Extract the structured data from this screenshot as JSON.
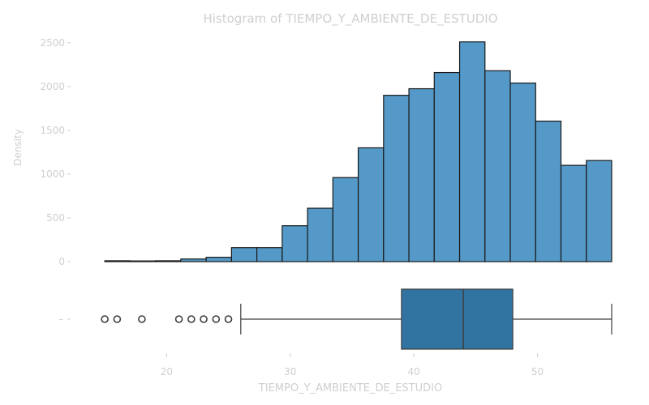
{
  "chart_data": {
    "type": "bar",
    "title": "Histogram of TIEMPO_Y_AMBIENTE_DE_ESTUDIO",
    "xlabel": "TIEMPO_Y_AMBIENTE_DE_ESTUDIO",
    "ylabel": "Density",
    "xlim": [
      12.3,
      56
    ],
    "ylim": [
      0,
      2600
    ],
    "x_ticks": [
      20,
      30,
      40,
      50
    ],
    "y_ticks": [
      0,
      500,
      1000,
      1500,
      2000,
      2500
    ],
    "bin_width": 2.05,
    "bins": [
      {
        "x0": 15.0,
        "count": 10
      },
      {
        "x0": 17.05,
        "count": 8
      },
      {
        "x0": 19.1,
        "count": 10
      },
      {
        "x0": 21.15,
        "count": 30
      },
      {
        "x0": 23.2,
        "count": 50
      },
      {
        "x0": 25.25,
        "count": 160
      },
      {
        "x0": 27.3,
        "count": 160
      },
      {
        "x0": 29.35,
        "count": 410
      },
      {
        "x0": 31.4,
        "count": 610
      },
      {
        "x0": 33.45,
        "count": 960
      },
      {
        "x0": 35.5,
        "count": 1300
      },
      {
        "x0": 37.55,
        "count": 1900
      },
      {
        "x0": 39.6,
        "count": 1975
      },
      {
        "x0": 41.65,
        "count": 2160
      },
      {
        "x0": 43.7,
        "count": 2510
      },
      {
        "x0": 45.75,
        "count": 2180
      },
      {
        "x0": 47.8,
        "count": 2040
      },
      {
        "x0": 49.85,
        "count": 1605
      },
      {
        "x0": 51.9,
        "count": 1100
      },
      {
        "x0": 53.95,
        "count": 1155
      }
    ],
    "boxplot": {
      "whisker_low": 26,
      "q1": 39,
      "median": 44,
      "q3": 48,
      "whisker_high": 56,
      "outliers": [
        15,
        16,
        18,
        21,
        22,
        23,
        24,
        25
      ],
      "y_tick_label": "–"
    },
    "colors": {
      "hist_fill": "#5499c7",
      "box_fill": "#3274a1",
      "edge": "#1a1a1a",
      "axis_text": "#cfcfcf"
    }
  }
}
